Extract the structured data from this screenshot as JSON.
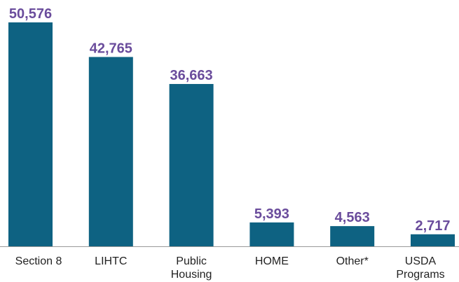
{
  "chart_data": {
    "type": "bar",
    "categories": [
      "Section 8",
      "LIHTC",
      "Public\nHousing",
      "HOME",
      "Other*",
      "USDA\nPrograms"
    ],
    "values": [
      50576,
      42765,
      36663,
      5393,
      4563,
      2717
    ],
    "value_labels": [
      "50,576",
      "42,765",
      "36,663",
      "5,393",
      "4,563",
      "2,717"
    ],
    "color": "#0e6282"
  }
}
